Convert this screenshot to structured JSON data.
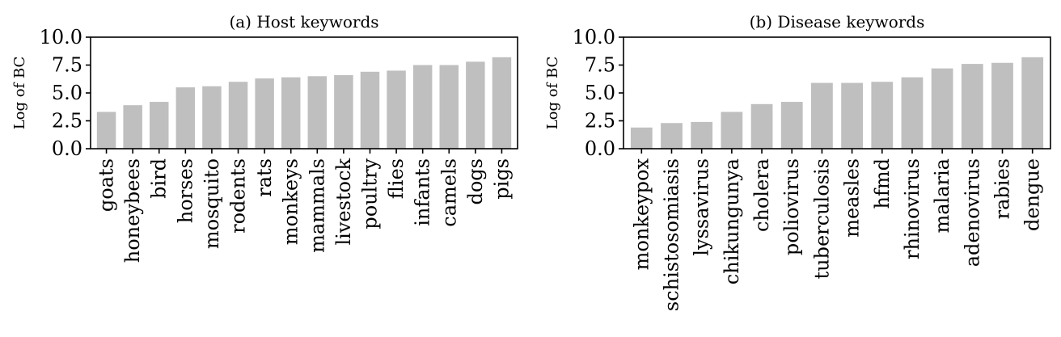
{
  "chart_data": [
    {
      "type": "bar",
      "title": "(a) Host keywords",
      "xlabel": "",
      "ylabel": "Log of BC",
      "ylim": [
        0,
        10
      ],
      "yticks": [
        "0.0",
        "2.5",
        "5.0",
        "7.5",
        "10.0"
      ],
      "bar_color": "#bfbfbf",
      "categories": [
        "goats",
        "honeybees",
        "bird",
        "horses",
        "mosquito",
        "rodents",
        "rats",
        "monkeys",
        "mammals",
        "livestock",
        "poultry",
        "flies",
        "infants",
        "camels",
        "dogs",
        "pigs"
      ],
      "values": [
        3.3,
        3.9,
        4.2,
        5.5,
        5.6,
        6.0,
        6.3,
        6.4,
        6.5,
        6.6,
        6.9,
        7.0,
        7.5,
        7.5,
        7.8,
        8.2
      ]
    },
    {
      "type": "bar",
      "title": "(b) Disease keywords",
      "xlabel": "",
      "ylabel": "Log of BC",
      "ylim": [
        0,
        10
      ],
      "yticks": [
        "0.0",
        "2.5",
        "5.0",
        "7.5",
        "10.0"
      ],
      "bar_color": "#bfbfbf",
      "categories": [
        "monkeypox",
        "schistosomiasis",
        "lyssavirus",
        "chikungunya",
        "cholera",
        "poliovirus",
        "tuberculosis",
        "measles",
        "hfmd",
        "rhinovirus",
        "malaria",
        "adenovirus",
        "rabies",
        "dengue"
      ],
      "values": [
        1.9,
        2.3,
        2.4,
        3.3,
        4.0,
        4.2,
        5.9,
        5.9,
        6.0,
        6.4,
        7.2,
        7.6,
        7.7,
        8.2
      ]
    }
  ]
}
